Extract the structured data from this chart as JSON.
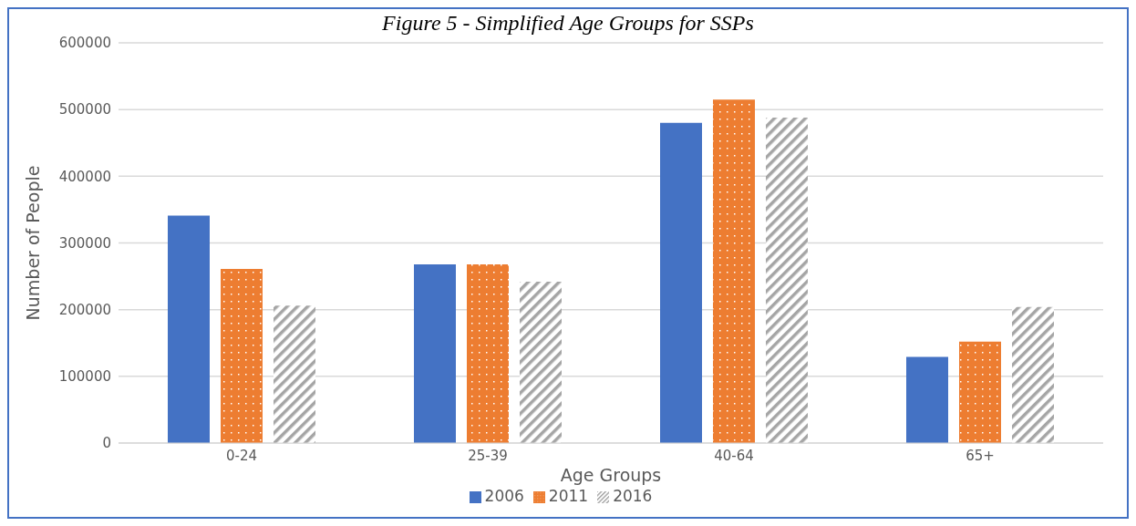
{
  "chart_data": {
    "type": "bar",
    "title": "Figure 5 - Simplified Age Groups for SSPs",
    "xlabel": "Age Groups",
    "ylabel": "Number of People",
    "categories": [
      "0-24",
      "25-39",
      "40-64",
      "65+"
    ],
    "series": [
      {
        "name": "2006",
        "color": "#4472c4",
        "values": [
          341000,
          268000,
          480000,
          129000
        ]
      },
      {
        "name": "2011",
        "color": "#ed7d31",
        "values": [
          261000,
          268000,
          515000,
          152000
        ]
      },
      {
        "name": "2016",
        "color": "#a5a5a5",
        "values": [
          206000,
          242000,
          488000,
          204000
        ]
      }
    ],
    "ylim": [
      0,
      600000
    ],
    "yticks": [
      0,
      100000,
      200000,
      300000,
      400000,
      500000,
      600000
    ],
    "grid": "y",
    "legend": "bottom"
  }
}
